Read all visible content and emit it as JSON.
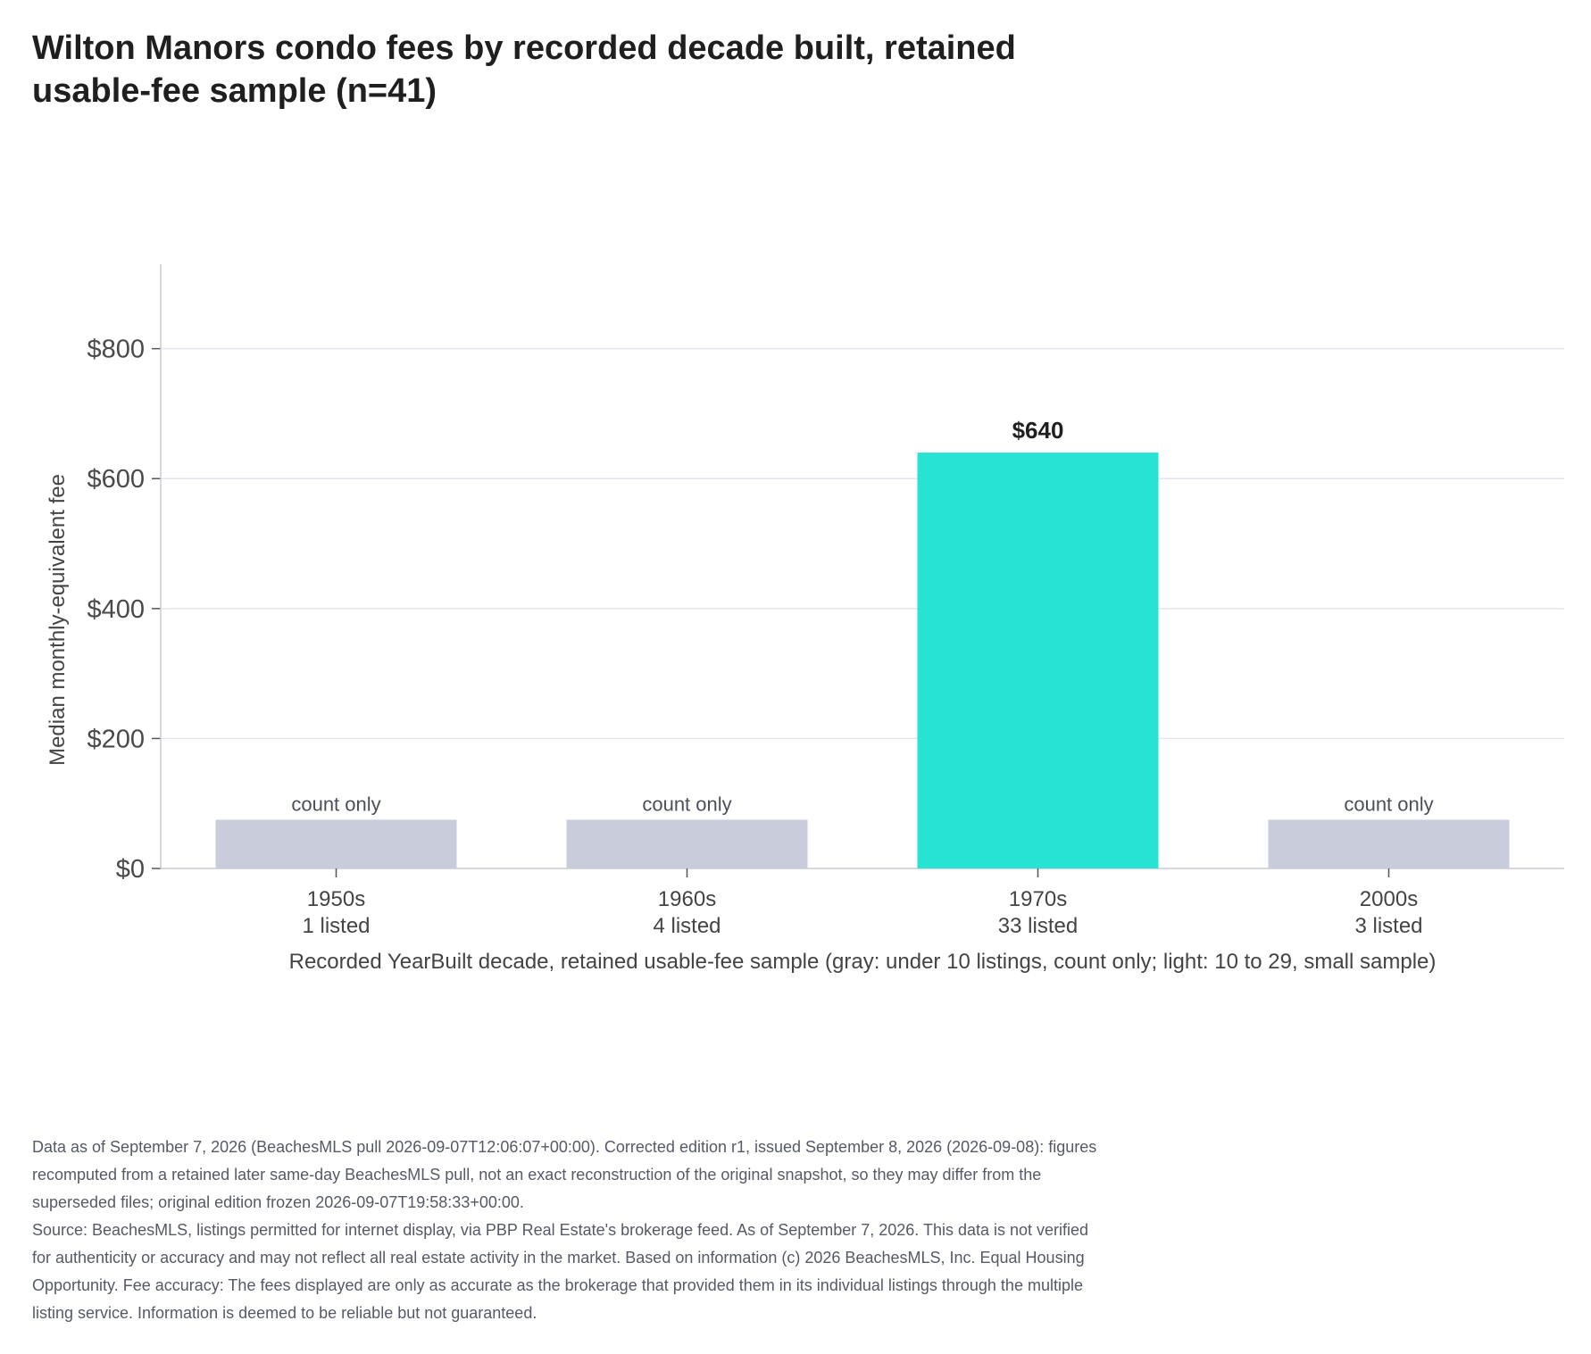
{
  "title_lines": [
    "Wilton Manors condo fees by recorded decade built, retained",
    "usable-fee sample (n=41)"
  ],
  "footnote_lines": [
    "Data as of September 7, 2026 (BeachesMLS pull 2026-09-07T12:06:07+00:00). Corrected edition r1, issued September 8, 2026 (2026-09-08): figures",
    "recomputed from a retained later same-day BeachesMLS pull, not an exact reconstruction of the original snapshot, so they may differ from the",
    "superseded files; original edition frozen 2026-09-07T19:58:33+00:00.",
    "Source: BeachesMLS, listings permitted for internet display, via PBP Real Estate's brokerage feed. As of September 7, 2026. This data is not verified",
    "for authenticity or accuracy and may not reflect all real estate activity in the market. Based on information (c) 2026 BeachesMLS, Inc. Equal Housing",
    "Opportunity. Fee accuracy: The fees displayed are only as accurate as the brokerage that provided them in its individual listings through the multiple",
    "listing service. Information is deemed to be reliable but not guaranteed."
  ],
  "chart_data": {
    "type": "bar",
    "title": "Wilton Manors condo fees by recorded decade built, retained usable-fee sample (n=41)",
    "xlabel": "Recorded YearBuilt decade, retained usable-fee sample (gray: under 10 listings, count only; light: 10 to 29, small sample)",
    "ylabel": "Median monthly-equivalent fee",
    "ylim": [
      0,
      930
    ],
    "yticks": [
      0,
      200,
      400,
      600,
      800
    ],
    "ytick_labels": [
      "$0",
      "$200",
      "$400",
      "$600",
      "$800"
    ],
    "grid": true,
    "categories": [
      {
        "decade": "1950s",
        "count_label": "1 listed",
        "value": 75,
        "bar_label": "count only",
        "status": "count-only",
        "color": "#c8ccdb"
      },
      {
        "decade": "1960s",
        "count_label": "4 listed",
        "value": 75,
        "bar_label": "count only",
        "status": "count-only",
        "color": "#c8ccdb"
      },
      {
        "decade": "1970s",
        "count_label": "33 listed",
        "value": 640,
        "bar_label": "$640",
        "status": "full",
        "color": "#27e3d4"
      },
      {
        "decade": "2000s",
        "count_label": "3 listed",
        "value": 75,
        "bar_label": "count only",
        "status": "count-only",
        "color": "#c8ccdb"
      }
    ],
    "colors": {
      "grid": "#e3e5ec",
      "axis": "#c9ccd6"
    }
  }
}
